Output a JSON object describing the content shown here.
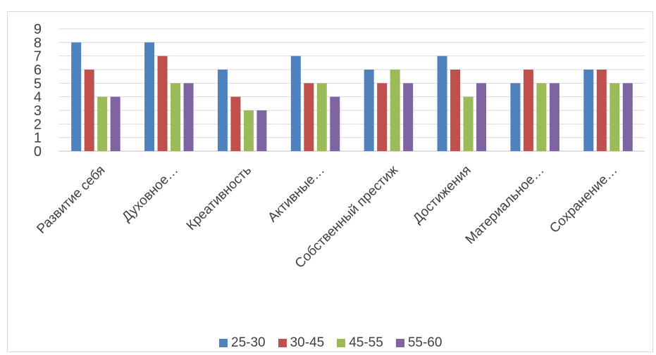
{
  "chart_data": {
    "type": "bar",
    "title": "",
    "xlabel": "",
    "ylabel": "",
    "ylim": [
      0,
      9
    ],
    "yticks": [
      "0",
      "1",
      "2",
      "3",
      "4",
      "5",
      "6",
      "7",
      "8",
      "9"
    ],
    "grid": true,
    "legend_position": "bottom",
    "categories": [
      "Развитие себя",
      "Духовное…",
      "Креативность",
      "Активные…",
      "Собственный престиж",
      "Достижения",
      "Материальное…",
      "Сохранение…"
    ],
    "series": [
      {
        "name": "25-30",
        "color": "#4f81bd",
        "values": [
          8,
          8,
          6,
          7,
          6,
          7,
          5,
          6
        ]
      },
      {
        "name": "30-45",
        "color": "#c0504d",
        "values": [
          6,
          7,
          4,
          5,
          5,
          6,
          6,
          6
        ]
      },
      {
        "name": "45-55",
        "color": "#9bbb59",
        "values": [
          4,
          5,
          3,
          5,
          6,
          4,
          5,
          5
        ]
      },
      {
        "name": "55-60",
        "color": "#8064a2",
        "values": [
          4,
          5,
          3,
          4,
          5,
          5,
          5,
          5
        ]
      }
    ]
  }
}
